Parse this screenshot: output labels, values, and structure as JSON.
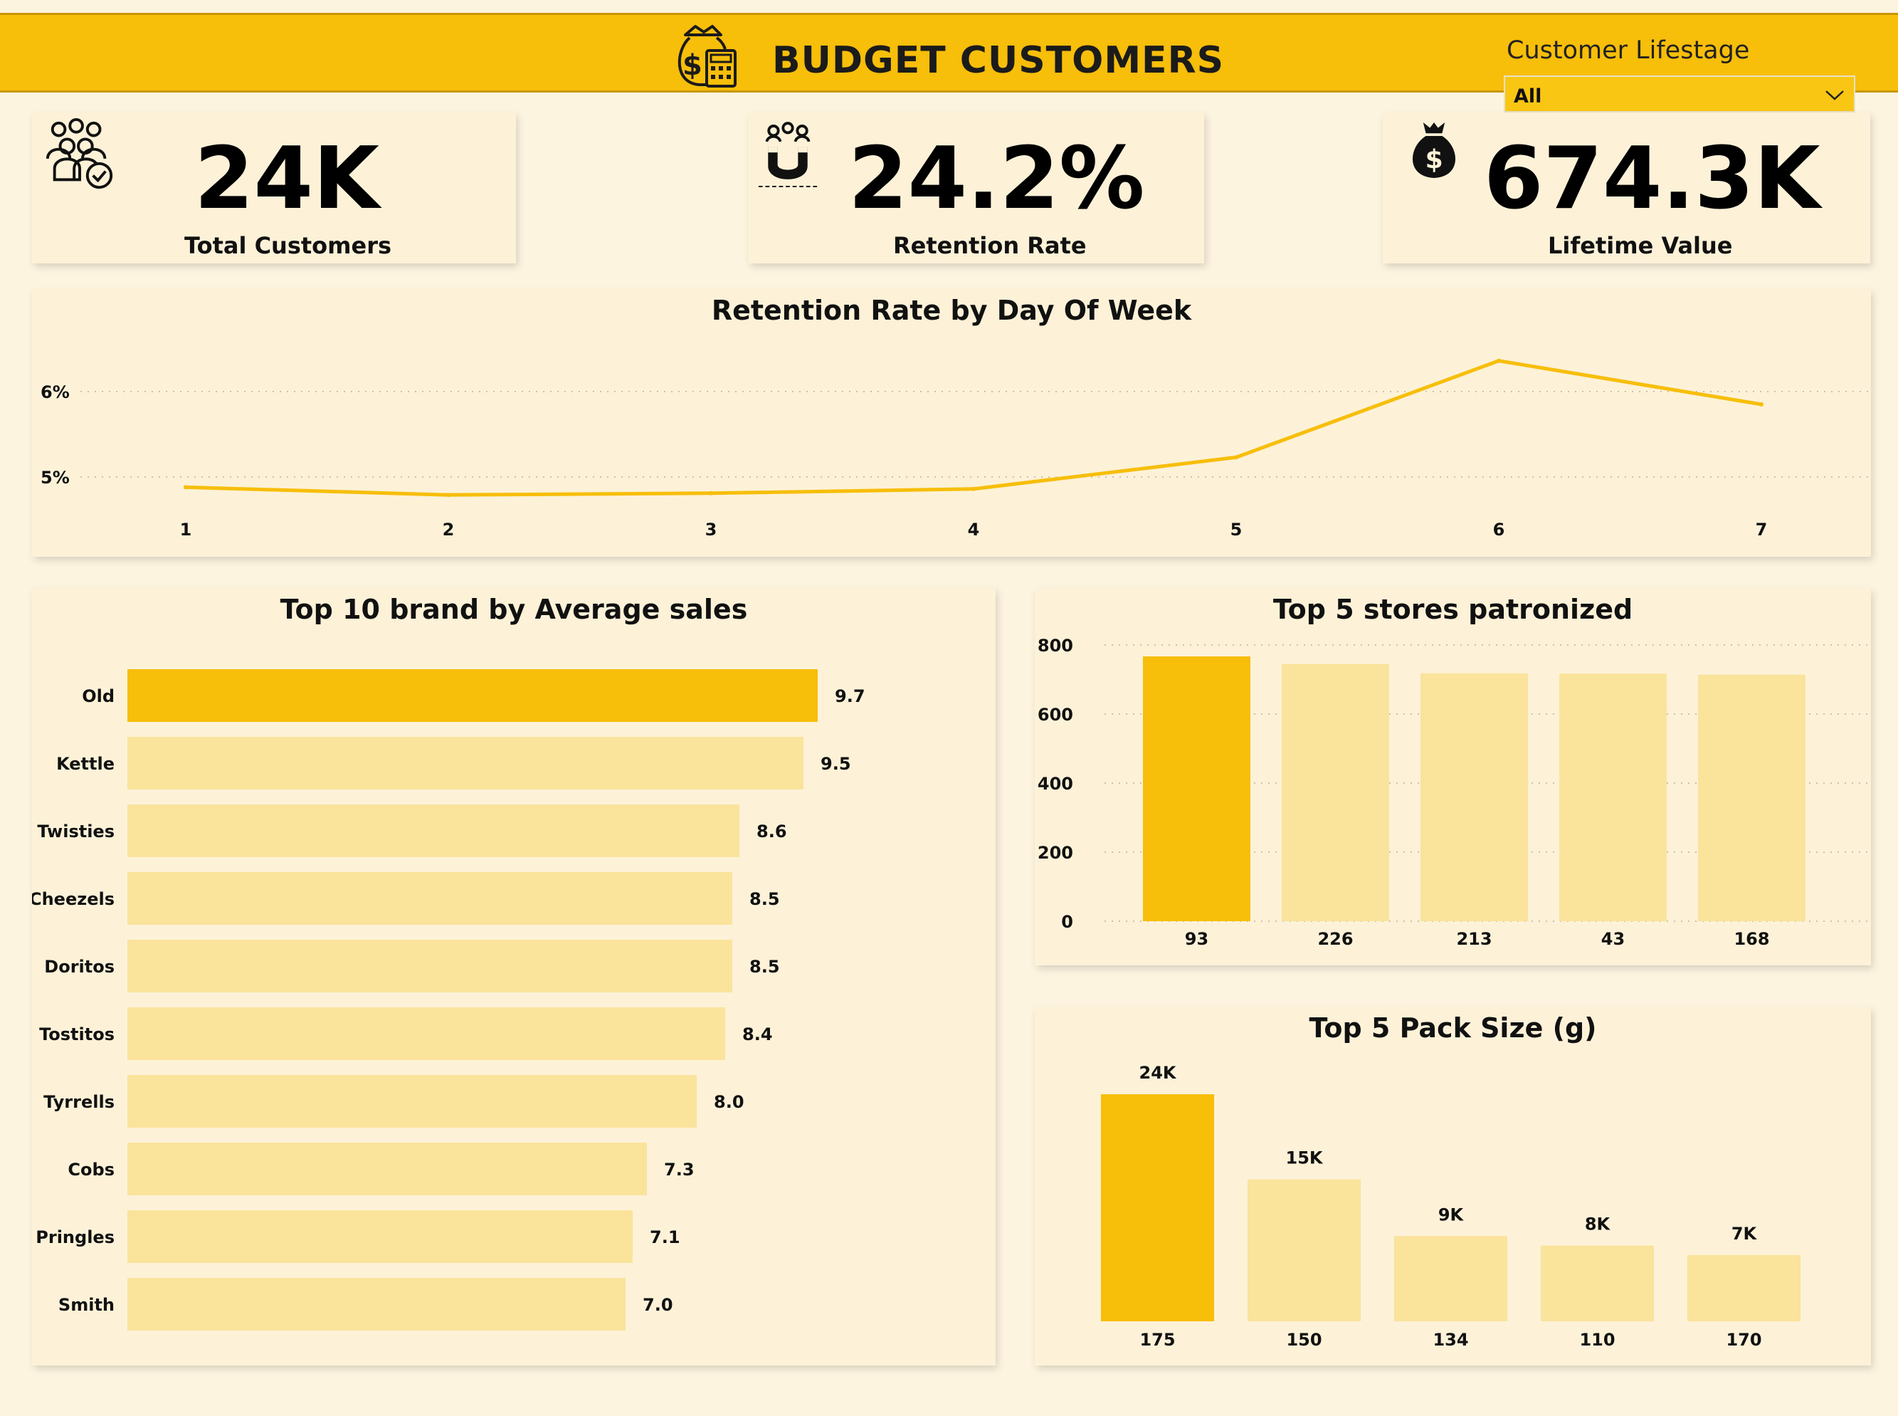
{
  "header": {
    "title": "BUDGET CUSTOMERS",
    "icon": "money-bag-calculator-icon",
    "slicer": {
      "label": "Customer Lifestage",
      "value": "All"
    }
  },
  "kpis": [
    {
      "value": "24K",
      "label": "Total Customers",
      "icon": "customers-group-icon"
    },
    {
      "value": "24.2%",
      "label": "Retention Rate",
      "icon": "magnet-people-icon"
    },
    {
      "value": "674.3K",
      "label": "Lifetime Value",
      "icon": "money-bag-icon"
    }
  ],
  "colors": {
    "accent": "#f7be0a",
    "light": "#fae39b",
    "background": "#fdf4e0",
    "card": "#fdf2d8"
  },
  "chart_data": [
    {
      "type": "line",
      "title": "Retention Rate by Day Of Week",
      "x": [
        "1",
        "2",
        "3",
        "4",
        "5",
        "6",
        "7"
      ],
      "values": [
        4.88,
        4.79,
        4.81,
        4.86,
        5.23,
        6.36,
        5.85
      ],
      "ytick_labels": [
        "5%",
        "6%"
      ],
      "yticks": [
        5,
        6
      ],
      "ylim": [
        4.2,
        6.7
      ],
      "grid": true
    },
    {
      "type": "bar",
      "orientation": "horizontal",
      "title": "Top 10 brand by Average sales",
      "categories": [
        "Old",
        "Kettle",
        "Twisties",
        "Cheezels",
        "Doritos",
        "Tostitos",
        "Tyrrells",
        "Cobs",
        "Pringles",
        "Smith"
      ],
      "values": [
        9.7,
        9.5,
        8.6,
        8.5,
        8.5,
        8.4,
        8.0,
        7.3,
        7.1,
        7.0
      ],
      "labels": [
        "9.7",
        "9.5",
        "8.6",
        "8.5",
        "8.5",
        "8.4",
        "8.0",
        "7.3",
        "7.1",
        "7.0"
      ],
      "highlight_index": 0
    },
    {
      "type": "bar",
      "title": "Top 5 stores patronized",
      "categories": [
        "93",
        "226",
        "213",
        "43",
        "168"
      ],
      "values": [
        767,
        745,
        718,
        717,
        714
      ],
      "yticks": [
        0,
        200,
        400,
        600,
        800
      ],
      "ylim": [
        0,
        800
      ],
      "grid": true,
      "highlight_index": 0
    },
    {
      "type": "bar",
      "title": "Top 5 Pack Size (g)",
      "categories": [
        "175",
        "150",
        "134",
        "110",
        "170"
      ],
      "values": [
        24000,
        15000,
        9000,
        8000,
        7000
      ],
      "labels": [
        "24K",
        "15K",
        "9K",
        "8K",
        "7K"
      ],
      "highlight_index": 0
    }
  ]
}
